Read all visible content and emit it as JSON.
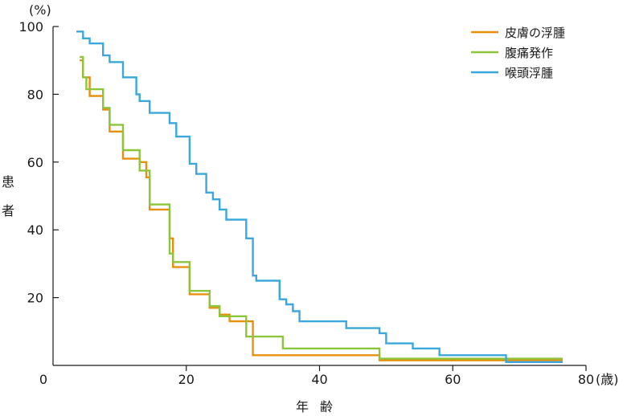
{
  "chart_data": {
    "type": "line",
    "step": true,
    "y_unit": "(%)",
    "x_unit": "(歳)",
    "ylabel": "患者",
    "xlabel": "年齢",
    "xlim": [
      0,
      80
    ],
    "ylim": [
      0,
      100
    ],
    "x_ticks": [
      "0",
      "20",
      "40",
      "60",
      "80"
    ],
    "y_ticks": [
      "20",
      "40",
      "60",
      "80",
      "100"
    ],
    "legend_position": "top-right",
    "series": [
      {
        "name": "皮膚の浮腫",
        "color": "#E8900E",
        "points": [
          [
            4,
            90
          ],
          [
            4.5,
            90
          ],
          [
            4.5,
            85
          ],
          [
            5.5,
            85
          ],
          [
            5.5,
            79.5
          ],
          [
            7.5,
            79.5
          ],
          [
            7.5,
            75.5
          ],
          [
            8.5,
            75.5
          ],
          [
            8.5,
            69
          ],
          [
            10.5,
            69
          ],
          [
            10.5,
            61
          ],
          [
            13,
            61
          ],
          [
            13,
            60
          ],
          [
            14,
            60
          ],
          [
            14,
            55.5
          ],
          [
            14.5,
            55.5
          ],
          [
            14.5,
            46
          ],
          [
            17.5,
            46
          ],
          [
            17.5,
            37.5
          ],
          [
            18,
            37.5
          ],
          [
            18,
            29
          ],
          [
            20.5,
            29
          ],
          [
            20.5,
            21
          ],
          [
            23.5,
            21
          ],
          [
            23.5,
            17
          ],
          [
            25,
            17
          ],
          [
            25,
            15
          ],
          [
            26.5,
            15
          ],
          [
            26.5,
            13
          ],
          [
            30,
            13
          ],
          [
            30,
            3
          ],
          [
            49,
            3
          ],
          [
            49,
            1.5
          ],
          [
            76.5,
            1.5
          ]
        ]
      },
      {
        "name": "腹痛発作",
        "color": "#8CC43C",
        "points": [
          [
            4,
            91
          ],
          [
            4.5,
            91
          ],
          [
            4.5,
            85
          ],
          [
            5,
            85
          ],
          [
            5,
            81.5
          ],
          [
            7.5,
            81.5
          ],
          [
            7.5,
            76
          ],
          [
            8.5,
            76
          ],
          [
            8.5,
            71
          ],
          [
            10.5,
            71
          ],
          [
            10.5,
            63.5
          ],
          [
            13,
            63.5
          ],
          [
            13,
            57.5
          ],
          [
            14.5,
            57.5
          ],
          [
            14.5,
            47.5
          ],
          [
            17.5,
            47.5
          ],
          [
            17.5,
            33
          ],
          [
            18,
            33
          ],
          [
            18,
            30.5
          ],
          [
            20.5,
            30.5
          ],
          [
            20.5,
            22
          ],
          [
            23.5,
            22
          ],
          [
            23.5,
            17.5
          ],
          [
            25,
            17.5
          ],
          [
            25,
            14.5
          ],
          [
            29,
            14.5
          ],
          [
            29,
            8.5
          ],
          [
            34.5,
            8.5
          ],
          [
            34.5,
            5
          ],
          [
            49,
            5
          ],
          [
            49,
            2
          ],
          [
            76.5,
            2
          ]
        ]
      },
      {
        "name": "喉頭浮腫",
        "color": "#3AA8DC",
        "points": [
          [
            3.5,
            98.5
          ],
          [
            4.5,
            98.5
          ],
          [
            4.5,
            96.5
          ],
          [
            5.5,
            96.5
          ],
          [
            5.5,
            95
          ],
          [
            7.5,
            95
          ],
          [
            7.5,
            91.5
          ],
          [
            8.5,
            91.5
          ],
          [
            8.5,
            89.5
          ],
          [
            10.5,
            89.5
          ],
          [
            10.5,
            85
          ],
          [
            12.5,
            85
          ],
          [
            12.5,
            80
          ],
          [
            13,
            80
          ],
          [
            13,
            78
          ],
          [
            14.5,
            78
          ],
          [
            14.5,
            74.5
          ],
          [
            17.5,
            74.5
          ],
          [
            17.5,
            71.5
          ],
          [
            18.5,
            71.5
          ],
          [
            18.5,
            67.5
          ],
          [
            20.5,
            67.5
          ],
          [
            20.5,
            59.5
          ],
          [
            21.5,
            59.5
          ],
          [
            21.5,
            56.5
          ],
          [
            23,
            56.5
          ],
          [
            23,
            51
          ],
          [
            24,
            51
          ],
          [
            24,
            49
          ],
          [
            25,
            49
          ],
          [
            25,
            46
          ],
          [
            26,
            46
          ],
          [
            26,
            43
          ],
          [
            29,
            43
          ],
          [
            29,
            37.5
          ],
          [
            30,
            37.5
          ],
          [
            30,
            26.5
          ],
          [
            30.5,
            26.5
          ],
          [
            30.5,
            25
          ],
          [
            34,
            25
          ],
          [
            34,
            19.5
          ],
          [
            35,
            19.5
          ],
          [
            35,
            18
          ],
          [
            36,
            18
          ],
          [
            36,
            16
          ],
          [
            37,
            16
          ],
          [
            37,
            13
          ],
          [
            44,
            13
          ],
          [
            44,
            11
          ],
          [
            49,
            11
          ],
          [
            49,
            9.5
          ],
          [
            50,
            9.5
          ],
          [
            50,
            6.5
          ],
          [
            54,
            6.5
          ],
          [
            54,
            5
          ],
          [
            58,
            5
          ],
          [
            58,
            3
          ],
          [
            68,
            3
          ],
          [
            68,
            1
          ],
          [
            76.5,
            1
          ]
        ]
      }
    ]
  }
}
